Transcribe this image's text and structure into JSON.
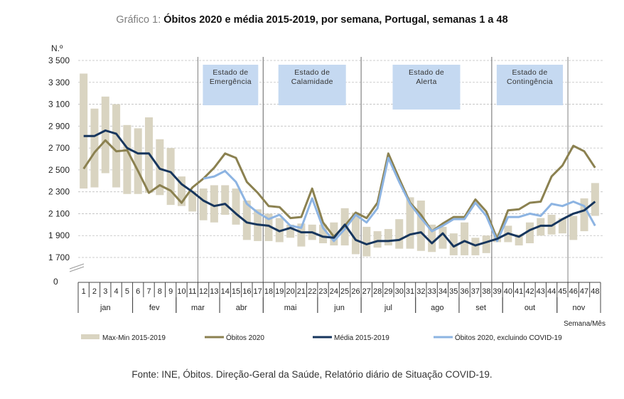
{
  "title": {
    "prefix": "Gráfico 1:",
    "text": "Óbitos 2020 e média 2015-2019, por semana, Portugal, semanas 1 a 48"
  },
  "source": "Fonte: INE, Óbitos. Direção-Geral da Saúde, Relatório diário de Situação COVID-19.",
  "chart_data": {
    "type": "line",
    "title": "Óbitos 2020 e média 2015-2019, por semana, Portugal, semanas 1 a 48",
    "ylabel": "N.º",
    "xlabel": "Semana/Mês",
    "ylim": [
      1700,
      3500
    ],
    "yticks": [
      "3 500",
      "3 300",
      "3 100",
      "2 900",
      "2 700",
      "2 500",
      "2 300",
      "2 100",
      "1 900",
      "1 700"
    ],
    "ytick_values": [
      3500,
      3300,
      3100,
      2900,
      2700,
      2500,
      2300,
      2100,
      1900,
      1700
    ],
    "y_zero_label": "0",
    "axis_break": true,
    "grid": true,
    "legend_position": "bottom",
    "x": [
      1,
      2,
      3,
      4,
      5,
      6,
      7,
      8,
      9,
      10,
      11,
      12,
      13,
      14,
      15,
      16,
      17,
      18,
      19,
      20,
      21,
      22,
      23,
      24,
      25,
      26,
      27,
      28,
      29,
      30,
      31,
      32,
      33,
      34,
      35,
      36,
      37,
      38,
      39,
      40,
      41,
      42,
      43,
      44,
      45,
      46,
      47,
      48
    ],
    "months": [
      {
        "label": "jan",
        "start": 1,
        "end": 5
      },
      {
        "label": "fev",
        "start": 6,
        "end": 9
      },
      {
        "label": "mar",
        "start": 10,
        "end": 13
      },
      {
        "label": "abr",
        "start": 14,
        "end": 17
      },
      {
        "label": "mai",
        "start": 18,
        "end": 22
      },
      {
        "label": "jun",
        "start": 23,
        "end": 26
      },
      {
        "label": "jul",
        "start": 27,
        "end": 31
      },
      {
        "label": "ago",
        "start": 32,
        "end": 35
      },
      {
        "label": "set",
        "start": 36,
        "end": 39
      },
      {
        "label": "out",
        "start": 40,
        "end": 44
      },
      {
        "label": "nov",
        "start": 45,
        "end": 48
      }
    ],
    "states": [
      {
        "label": [
          "Estado de",
          "Emergência"
        ],
        "start_week": 12,
        "end_week": 17
      },
      {
        "label": [
          "Estado de",
          "Calamidade"
        ],
        "start_week": 18,
        "end_week": 26
      },
      {
        "label": [
          "Estado de",
          "Alerta"
        ],
        "start_week": 27,
        "end_week": 38
      },
      {
        "label": [
          "Estado de",
          "Contingência"
        ],
        "start_week": 39,
        "end_week": 45
      }
    ],
    "range_bars": {
      "name": "Max-Min 2015-2019",
      "color": "#d9d4c1",
      "max": [
        3380,
        3060,
        3170,
        3100,
        2910,
        2880,
        2980,
        2780,
        2700,
        2440,
        2310,
        2330,
        2360,
        2360,
        2330,
        2220,
        2140,
        2100,
        2060,
        2000,
        2010,
        2000,
        2000,
        2020,
        2150,
        2110,
        1980,
        1940,
        1960,
        2050,
        2250,
        2220,
        2000,
        1980,
        1920,
        2020,
        1880,
        1900,
        1920,
        1990,
        1910,
        2020,
        2060,
        2090,
        2060,
        2080,
        2240,
        2380
      ],
      "min": [
        2330,
        2340,
        2470,
        2340,
        2280,
        2280,
        2290,
        2270,
        2180,
        2170,
        2120,
        2040,
        2020,
        2090,
        2000,
        1860,
        1850,
        1850,
        1840,
        1880,
        1800,
        1860,
        1830,
        1810,
        1810,
        1730,
        1710,
        1790,
        1810,
        1780,
        1780,
        1760,
        1750,
        1780,
        1720,
        1720,
        1720,
        1740,
        1840,
        1840,
        1810,
        1830,
        1900,
        1910,
        1920,
        1860,
        1940,
        2080
      ]
    },
    "series": [
      {
        "name": "Óbitos 2020",
        "color": "#8b8150",
        "values": [
          2510,
          2660,
          2770,
          2670,
          2680,
          2490,
          2290,
          2360,
          2310,
          2200,
          2340,
          2420,
          2520,
          2650,
          2610,
          2390,
          2290,
          2170,
          2160,
          2060,
          2070,
          2330,
          2020,
          1890,
          1990,
          2110,
          2060,
          2200,
          2650,
          2420,
          2200,
          2090,
          1940,
          2010,
          2070,
          2070,
          2230,
          2120,
          1870,
          2130,
          2140,
          2200,
          2210,
          2440,
          2540,
          2720,
          2670,
          2520
        ]
      },
      {
        "name": "Média 2015-2019",
        "color": "#17365d",
        "values": [
          2810,
          2810,
          2860,
          2830,
          2700,
          2650,
          2650,
          2510,
          2480,
          2370,
          2300,
          2220,
          2170,
          2190,
          2100,
          2020,
          2000,
          1990,
          1940,
          1970,
          1930,
          1930,
          1890,
          1880,
          2000,
          1860,
          1820,
          1850,
          1850,
          1860,
          1910,
          1930,
          1830,
          1920,
          1800,
          1850,
          1810,
          1840,
          1870,
          1920,
          1890,
          1950,
          1990,
          1990,
          2050,
          2100,
          2130,
          2210
        ]
      },
      {
        "name": "Óbitos 2020, excluindo COVID-19",
        "color": "#8db4e2",
        "values": [
          null,
          null,
          null,
          null,
          null,
          null,
          null,
          null,
          null,
          null,
          null,
          2420,
          2440,
          2490,
          2390,
          2190,
          2110,
          2050,
          2090,
          1990,
          1970,
          2240,
          1970,
          1850,
          1960,
          2090,
          2020,
          2150,
          2610,
          2390,
          2190,
          2060,
          1940,
          1990,
          2050,
          2050,
          2200,
          2080,
          1850,
          2070,
          2070,
          2100,
          2080,
          2190,
          2170,
          2210,
          2170,
          1990
        ]
      }
    ],
    "state_box_color": "#c5d9f1"
  }
}
